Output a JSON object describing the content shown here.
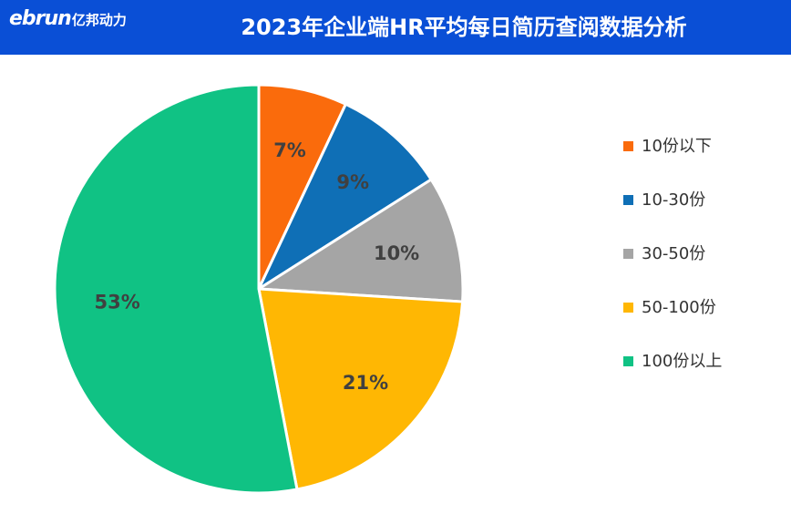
{
  "header": {
    "logo_latin": "ebrun",
    "logo_cjk": "亿邦动力",
    "title": "2023年企业端HR平均每日简历查阅数据分析"
  },
  "chart_data": {
    "type": "pie",
    "title": "2023年企业端HR平均每日简历查阅数据分析",
    "legend_position": "right",
    "slices": [
      {
        "label": "10份以下",
        "value": 7,
        "value_label": "7%",
        "color": "#fa6b0c"
      },
      {
        "label": "10-30份",
        "value": 9,
        "value_label": "9%",
        "color": "#0f6fb6"
      },
      {
        "label": "30-50份",
        "value": 10,
        "value_label": "10%",
        "color": "#a5a5a5"
      },
      {
        "label": "50-100份",
        "value": 21,
        "value_label": "21%",
        "color": "#ffb703"
      },
      {
        "label": "100份以上",
        "value": 53,
        "value_label": "53%",
        "color": "#10c284"
      }
    ]
  }
}
